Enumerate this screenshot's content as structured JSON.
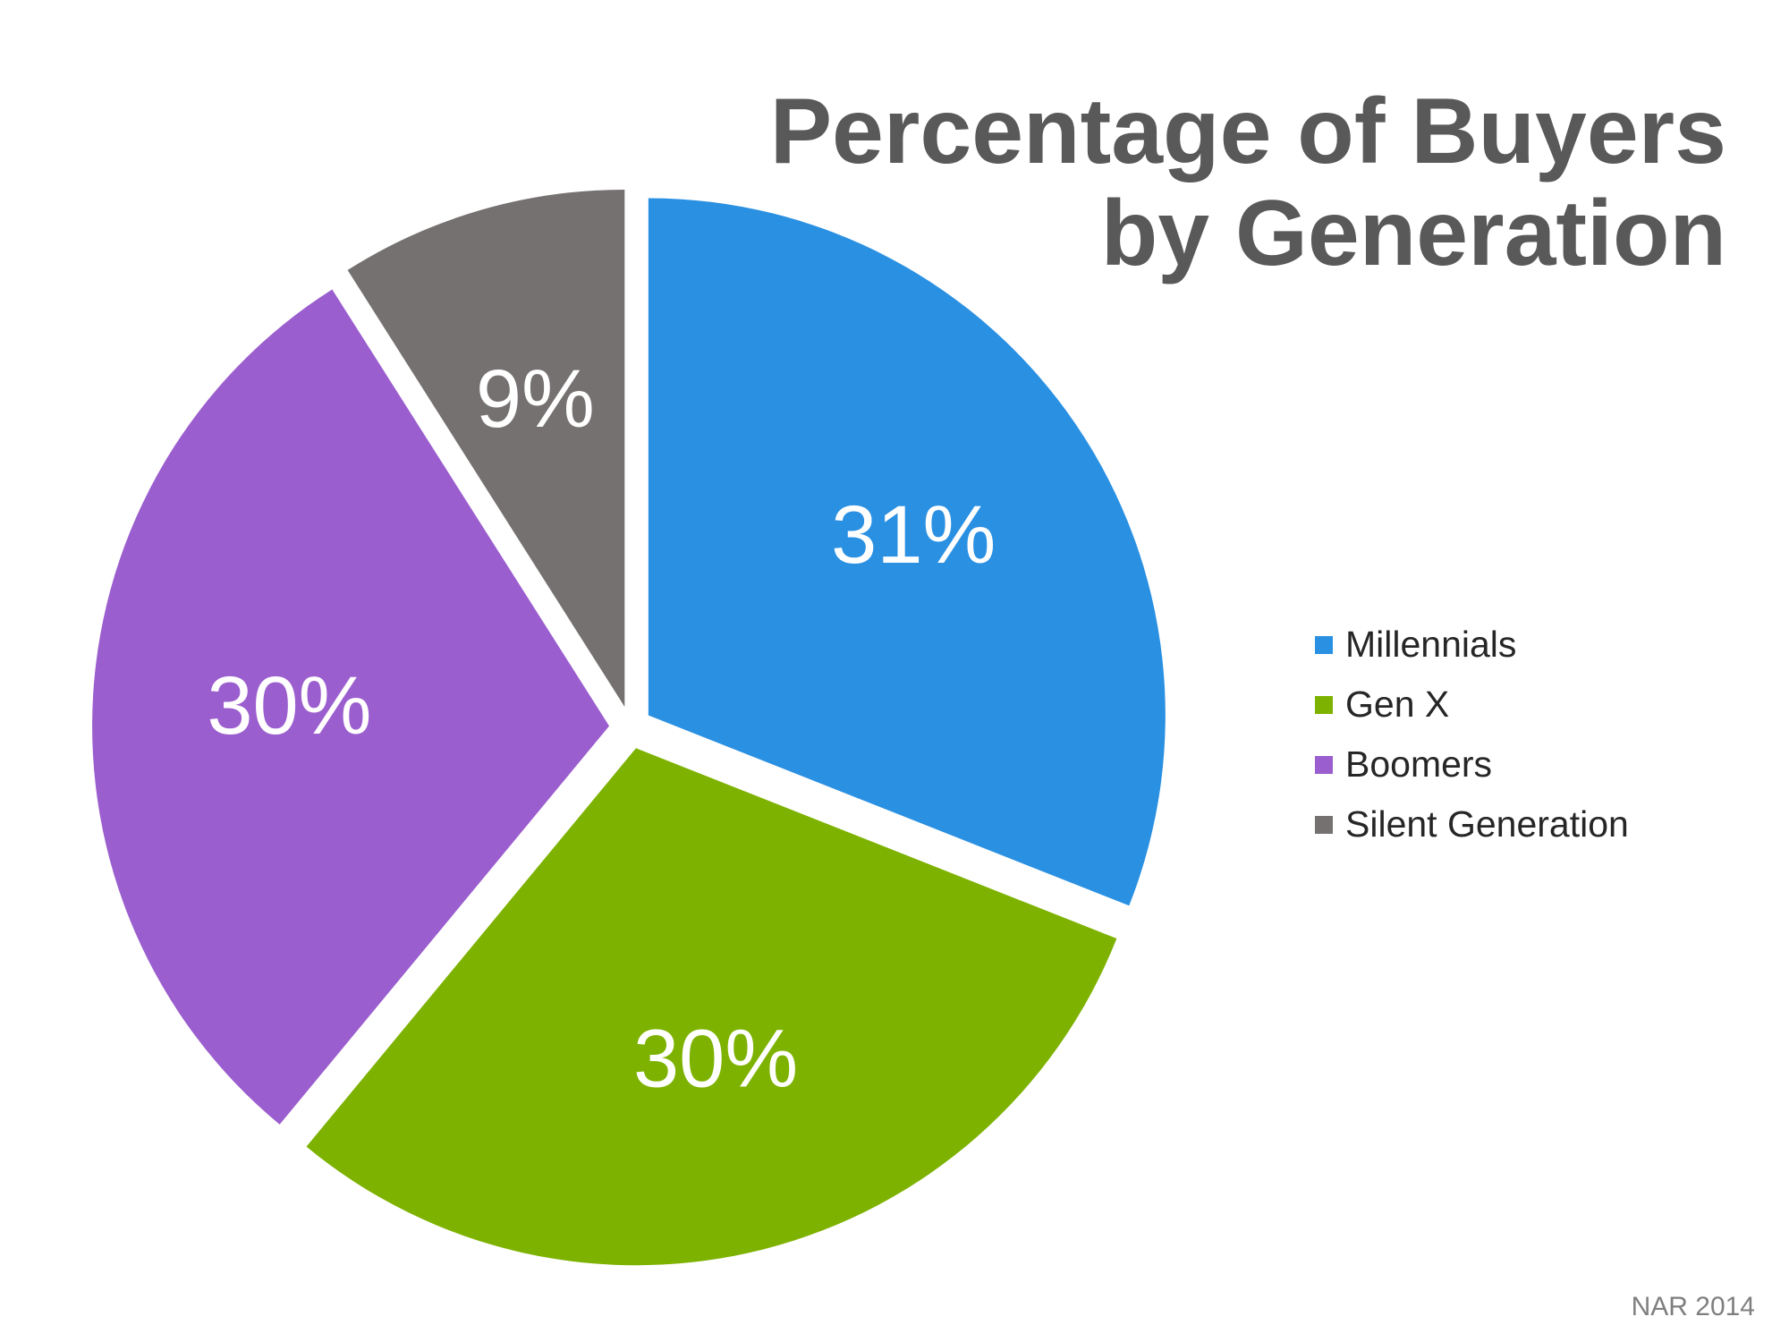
{
  "chart_data": {
    "type": "pie",
    "title": "Percentage of Buyers by Generation",
    "title_lines": [
      "Percentage of Buyers",
      "by Generation"
    ],
    "slices": [
      {
        "name": "Millennials",
        "value": 31,
        "label": "31%",
        "color": "#2A90E2"
      },
      {
        "name": "Gen X",
        "value": 30,
        "label": "30%",
        "color": "#7DB200"
      },
      {
        "name": "Boomers",
        "value": 30,
        "label": "30%",
        "color": "#9B5ECE"
      },
      {
        "name": "Silent Generation",
        "value": 9,
        "label": "9%",
        "color": "#767171"
      }
    ],
    "exploded": true,
    "start": "top, clockwise",
    "legend_position": "right"
  },
  "source": "NAR 2014"
}
